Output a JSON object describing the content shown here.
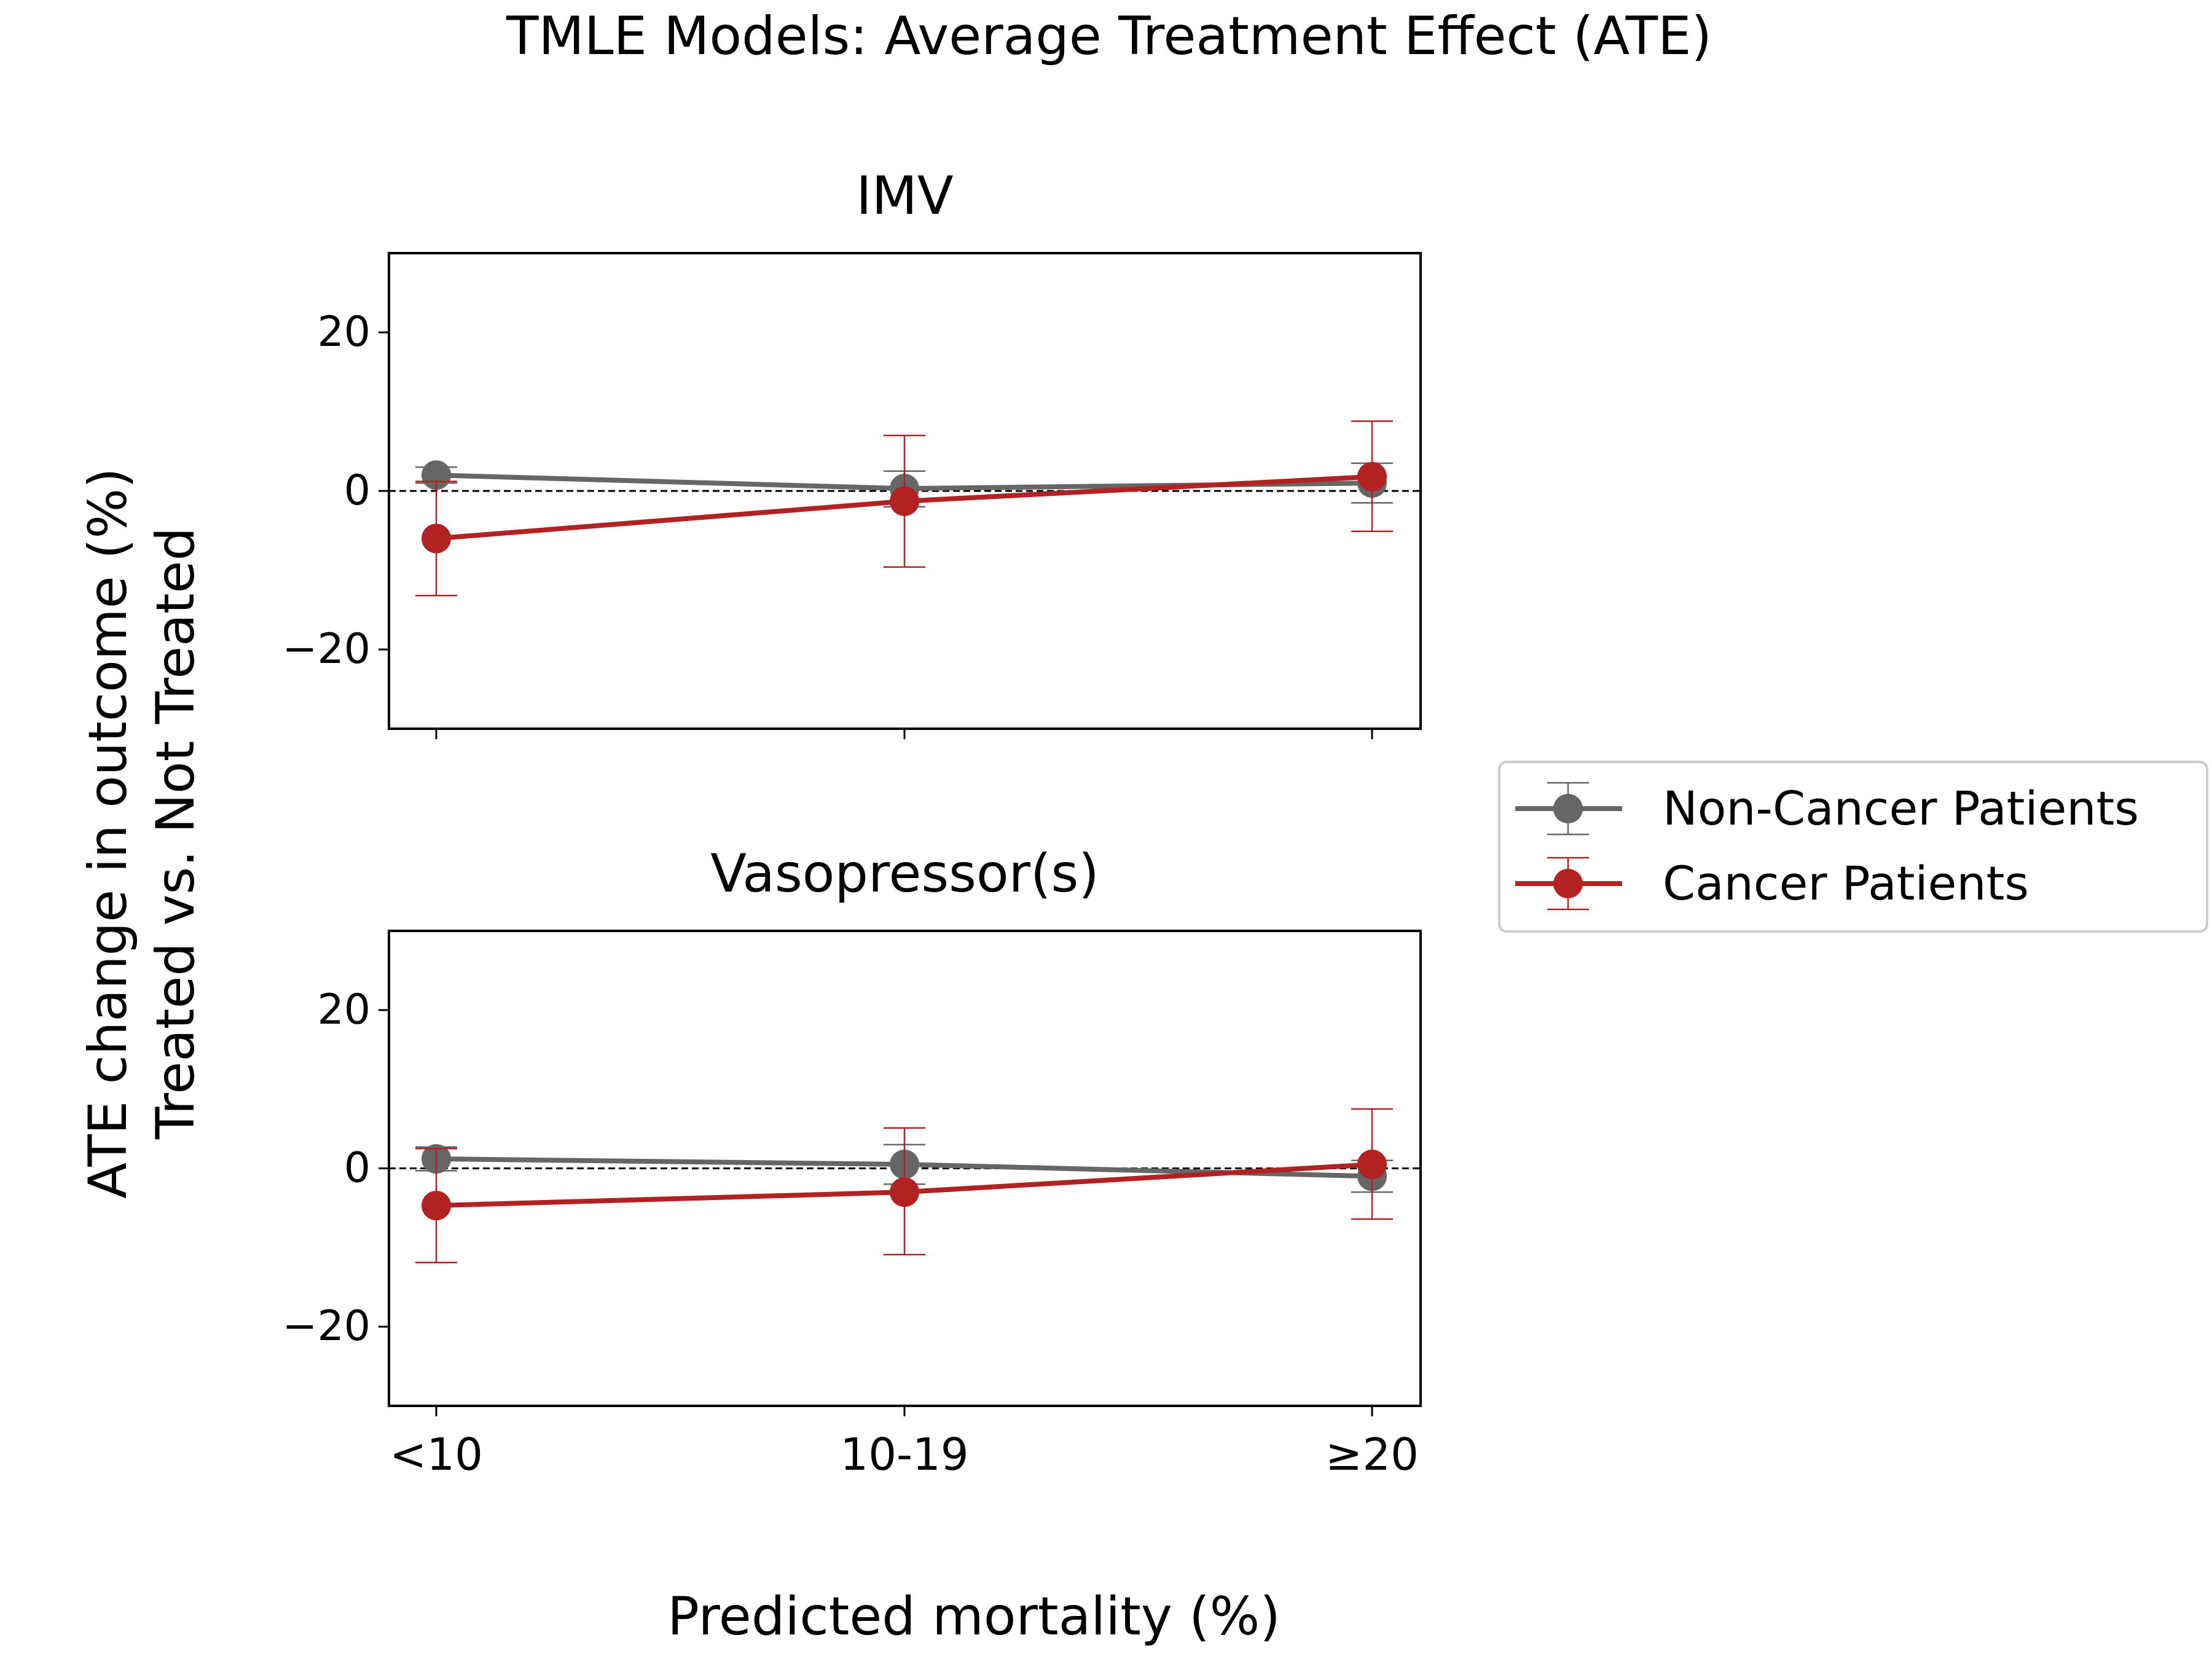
{
  "chart_data": {
    "type": "line",
    "title": "TMLE Models: Average Treatment Effect (ATE)",
    "xlabel": "Predicted mortality (%)",
    "ylabel_lines": [
      "ATE change in outcome (%)",
      "Treated vs. Not Treated"
    ],
    "categories": [
      "<10",
      "10-19",
      "≥20"
    ],
    "ylim": [
      -30,
      30
    ],
    "yticks": [
      -20,
      0,
      20
    ],
    "ytick_labels": [
      "−20",
      "0",
      "20"
    ],
    "reference_line": 0,
    "legend": {
      "placement": "right",
      "entries": [
        "Non-Cancer Patients",
        "Cancer Patients"
      ]
    },
    "colors": {
      "non_cancer": "#666666",
      "cancer": "#b22222"
    },
    "panels": [
      {
        "title": "IMV",
        "series": [
          {
            "name": "Non-Cancer Patients",
            "color": "#666666",
            "values": [
              2.0,
              0.3,
              1.0
            ],
            "lower": [
              1.0,
              -2.0,
              -1.5
            ],
            "upper": [
              3.0,
              2.5,
              3.5
            ]
          },
          {
            "name": "Cancer Patients",
            "color": "#b22222",
            "values": [
              -6.0,
              -1.3,
              1.8
            ],
            "lower": [
              -13.2,
              -9.6,
              -5.1
            ],
            "upper": [
              1.2,
              7.0,
              8.8
            ]
          }
        ]
      },
      {
        "title": "Vasopressor(s)",
        "series": [
          {
            "name": "Non-Cancer Patients",
            "color": "#666666",
            "values": [
              1.2,
              0.5,
              -1.0
            ],
            "lower": [
              -0.3,
              -2.0,
              -3.0
            ],
            "upper": [
              2.7,
              3.0,
              1.0
            ]
          },
          {
            "name": "Cancer Patients",
            "color": "#b22222",
            "values": [
              -4.7,
              -3.0,
              0.5
            ],
            "lower": [
              -11.9,
              -10.9,
              -6.4
            ],
            "upper": [
              2.5,
              5.1,
              7.5
            ]
          }
        ]
      }
    ]
  }
}
